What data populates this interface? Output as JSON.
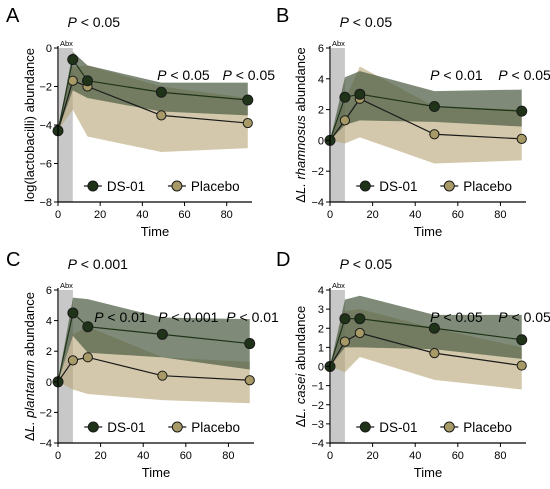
{
  "legend": [
    "DS-01",
    "Placebo"
  ],
  "abx_label": "Abx",
  "colors": {
    "ds01_line": "#1f3318",
    "ds01_fill": "#4d5e44",
    "placebo_line": "#5a4d33",
    "placebo_fill": "#b8a678",
    "placebo_marker": "#a89a66",
    "abx_band": "#c8c8c8"
  },
  "chart_data": [
    {
      "type": "line",
      "panel": "A",
      "xlabel": "Time",
      "ylabel": "log(lactobacilli) abundance",
      "ylabel_italic": "",
      "xlim": [
        0,
        92
      ],
      "ylim": [
        -8,
        0
      ],
      "xticks": [
        0,
        20,
        40,
        60,
        80
      ],
      "yticks": [
        -8,
        -6,
        -4,
        -2,
        0
      ],
      "abx_window": [
        0,
        7
      ],
      "pvalues": [
        {
          "text_prefix": "P",
          "text": " < 0.05",
          "x": 4.5
        },
        {
          "text_prefix": "P",
          "text": " < 0.05",
          "x": 47
        },
        {
          "text_prefix": "P",
          "text": " < 0.05",
          "x": 78
        }
      ],
      "pvalue_levels": [
        0,
        1,
        1
      ],
      "series": [
        {
          "name": "DS-01",
          "x": [
            0,
            7,
            14,
            49,
            90
          ],
          "y": [
            -4.3,
            -0.6,
            -1.7,
            -2.3,
            -2.7
          ],
          "upper": [
            -4.3,
            -0.2,
            -0.9,
            -1.8,
            -1.8
          ],
          "lower": [
            -4.3,
            -2.2,
            -2.6,
            -3.3,
            -3.5
          ]
        },
        {
          "name": "Placebo",
          "x": [
            0,
            7,
            14,
            49,
            90
          ],
          "y": [
            -4.3,
            -1.7,
            -2.0,
            -3.5,
            -3.9
          ],
          "upper": [
            -4.3,
            -1.0,
            -0.9,
            -2.0,
            -2.6
          ],
          "lower": [
            -4.3,
            -3.2,
            -4.6,
            -5.4,
            -5.2
          ]
        }
      ]
    },
    {
      "type": "line",
      "panel": "B",
      "xlabel": "Time",
      "ylabel": " abundance",
      "ylabel_italic": "L. rhamnosus",
      "xlim": [
        0,
        92
      ],
      "ylim": [
        -4,
        6
      ],
      "xticks": [
        0,
        20,
        40,
        60,
        80
      ],
      "yticks": [
        -4,
        -2,
        0,
        2,
        4,
        6
      ],
      "abx_window": [
        0,
        7
      ],
      "pvalues": [
        {
          "text_prefix": "P",
          "text": " < 0.05",
          "x": 4.5
        },
        {
          "text_prefix": "P",
          "text": " < 0.01",
          "x": 47
        },
        {
          "text_prefix": "P",
          "text": " < 0.05",
          "x": 79
        }
      ],
      "pvalue_levels": [
        0,
        1,
        1
      ],
      "series": [
        {
          "name": "DS-01",
          "x": [
            0,
            7,
            14,
            49,
            90
          ],
          "y": [
            0,
            2.8,
            3.0,
            2.2,
            1.9
          ],
          "upper": [
            0,
            4.1,
            4.5,
            3.2,
            3.3
          ],
          "lower": [
            0,
            1.0,
            1.3,
            1.2,
            0.9
          ]
        },
        {
          "name": "Placebo",
          "x": [
            0,
            7,
            14,
            49,
            90
          ],
          "y": [
            0,
            1.3,
            2.7,
            0.4,
            0.1
          ],
          "upper": [
            0,
            2.6,
            4.8,
            2.2,
            2.0
          ],
          "lower": [
            0,
            -0.2,
            0.2,
            -1.5,
            -1.3
          ]
        }
      ]
    },
    {
      "type": "line",
      "panel": "C",
      "xlabel": "Time",
      "ylabel": " abundance",
      "ylabel_italic": "L. plantarum",
      "xlim": [
        0,
        92
      ],
      "ylim": [
        -4,
        6
      ],
      "xticks": [
        0,
        20,
        40,
        60,
        80
      ],
      "yticks": [
        -4,
        -2,
        0,
        2,
        4,
        6
      ],
      "abx_window": [
        0,
        7
      ],
      "pvalues": [
        {
          "text_prefix": "P",
          "text": " < 0.001",
          "x": 4.5
        },
        {
          "text_prefix": "P",
          "text": " < 0.01",
          "x": 17
        },
        {
          "text_prefix": "P",
          "text": " < 0.001",
          "x": 47
        },
        {
          "text_prefix": "P",
          "text": " < 0.01",
          "x": 79
        }
      ],
      "pvalue_levels": [
        0,
        1,
        1,
        1
      ],
      "series": [
        {
          "name": "DS-01",
          "x": [
            0,
            7,
            14,
            49,
            90
          ],
          "y": [
            0,
            4.5,
            3.6,
            3.1,
            2.5
          ],
          "upper": [
            0,
            5.5,
            5.4,
            4.2,
            4.1
          ],
          "lower": [
            0,
            3.0,
            1.9,
            1.6,
            0.8
          ]
        },
        {
          "name": "Placebo",
          "x": [
            0,
            7,
            14,
            49,
            90
          ],
          "y": [
            0,
            1.4,
            1.6,
            0.4,
            0.1
          ],
          "upper": [
            0,
            3.1,
            3.6,
            1.6,
            1.3
          ],
          "lower": [
            0,
            -0.5,
            -0.8,
            -1.2,
            -1.4
          ]
        }
      ]
    },
    {
      "type": "line",
      "panel": "D",
      "xlabel": "Time",
      "ylabel": " abundance",
      "ylabel_italic": "L. casei",
      "xlim": [
        0,
        92
      ],
      "ylim": [
        -4,
        4
      ],
      "xticks": [
        0,
        20,
        40,
        60,
        80
      ],
      "yticks": [
        -4,
        -3,
        -2,
        -1,
        0,
        1,
        2,
        3,
        4
      ],
      "abx_window": [
        0,
        7
      ],
      "pvalues": [
        {
          "text_prefix": "P",
          "text": " < 0.05",
          "x": 4.5
        },
        {
          "text_prefix": "P",
          "text": " < 0.05",
          "x": 47
        },
        {
          "text_prefix": "P",
          "text": " < 0.05",
          "x": 79
        }
      ],
      "pvalue_levels": [
        0,
        1,
        1
      ],
      "series": [
        {
          "name": "DS-01",
          "x": [
            0,
            7,
            14,
            49,
            90
          ],
          "y": [
            0,
            2.5,
            2.5,
            2.0,
            1.4
          ],
          "upper": [
            0,
            3.5,
            3.7,
            2.7,
            2.7
          ],
          "lower": [
            0,
            1.0,
            1.0,
            0.9,
            0.4
          ]
        },
        {
          "name": "Placebo",
          "x": [
            0,
            7,
            14,
            49,
            90
          ],
          "y": [
            0,
            1.3,
            1.75,
            0.7,
            0.05
          ],
          "upper": [
            0,
            2.9,
            3.0,
            2.0,
            1.0
          ],
          "lower": [
            0,
            -0.3,
            0.5,
            -0.7,
            -1.2
          ]
        }
      ]
    }
  ]
}
